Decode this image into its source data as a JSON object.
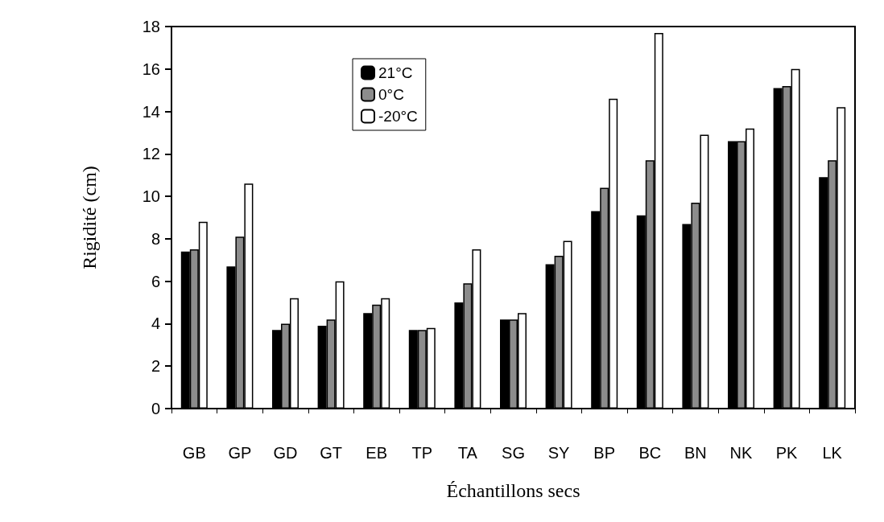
{
  "chart_data": {
    "type": "bar",
    "xlabel": "Échantillons secs",
    "ylabel": "Rigidité (cm)",
    "categories": [
      "GB",
      "GP",
      "GD",
      "GT",
      "EB",
      "TP",
      "TA",
      "SG",
      "SY",
      "BP",
      "BC",
      "BN",
      "NK",
      "PK",
      "LK"
    ],
    "series": [
      {
        "name": "21°C",
        "color": "#000000",
        "values": [
          7.4,
          6.7,
          3.7,
          3.9,
          4.5,
          3.7,
          5.0,
          4.2,
          6.8,
          9.3,
          9.1,
          8.7,
          12.6,
          15.1,
          10.9
        ]
      },
      {
        "name": "0°C",
        "color": "#8c8c8c",
        "values": [
          7.5,
          8.1,
          4.0,
          4.2,
          4.9,
          3.7,
          5.9,
          4.2,
          7.2,
          10.4,
          11.7,
          9.7,
          12.6,
          15.2,
          11.7
        ]
      },
      {
        "name": "-20°C",
        "color": "#ffffff",
        "values": [
          8.8,
          10.6,
          5.2,
          6.0,
          5.2,
          3.8,
          7.5,
          4.5,
          7.9,
          14.6,
          17.7,
          12.9,
          13.2,
          16.0,
          14.2
        ]
      }
    ],
    "ylim": [
      0,
      18
    ],
    "yticks": [
      0,
      2,
      4,
      6,
      8,
      10,
      12,
      14,
      16,
      18
    ],
    "grid": false,
    "legend": "top"
  }
}
